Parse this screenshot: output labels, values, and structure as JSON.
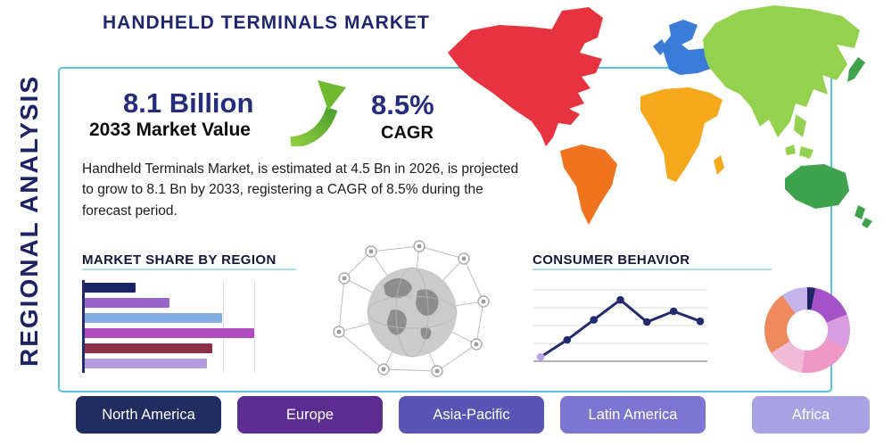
{
  "page": {
    "title": "HANDHELD TERMINALS MARKET",
    "vertical_label": "REGIONAL ANALYSIS"
  },
  "highlights": {
    "market_value": "8.1 Billion",
    "market_value_caption": "2033 Market Value",
    "cagr_value": "8.5%",
    "cagr_caption": "CAGR",
    "description": "Handheld Terminals Market, is estimated at 4.5 Bn in 2026, is projected to grow to 8.1 Bn by 2033, registering a CAGR of 8.5% during the forecast period."
  },
  "theme": {
    "navy": "#232a6e",
    "card_border": "#57c3da",
    "heading_rule": "#a8dff0",
    "arrow_green": "#6fb92f"
  },
  "map": {
    "region_colors": {
      "north-america": "#e73240",
      "greenland": "#e73240",
      "south-america": "#f0741f",
      "europe": "#3b7cd8",
      "uk": "#3b7cd8",
      "africa": "#f5a81c",
      "madagascar": "#f5a81c",
      "asia": "#93d14f",
      "indochina": "#93d14f",
      "indonesia": "#93d14f",
      "japan": "#3fa24c",
      "australia": "#3fa24c",
      "new-zealand": "#3fa24c"
    }
  },
  "chart_data": [
    {
      "type": "bar",
      "title": "MARKET SHARE BY REGION",
      "orientation": "horizontal",
      "unit": "relative length (percent of longest bar)",
      "values": [
        30,
        50,
        81,
        100,
        75,
        72
      ],
      "colors": [
        "#1b2464",
        "#9a63c8",
        "#85aee4",
        "#af4cbe",
        "#8e2f4a",
        "#b49be0"
      ]
    },
    {
      "type": "line",
      "title": "CONSUMER BEHAVIOR",
      "unit": "relative height (0-100)",
      "values": [
        6,
        30,
        58,
        86,
        55,
        70,
        56
      ],
      "color": "#232a6e",
      "start_marker_color": "#b9a6e8",
      "grid": true
    },
    {
      "type": "donut",
      "values": [
        3,
        16,
        13,
        20,
        14,
        24,
        10
      ],
      "colors": [
        "#1e2463",
        "#a352c8",
        "#d79de0",
        "#ef97c5",
        "#f2bcd9",
        "#ee8a5e",
        "#c5b4ea"
      ]
    }
  ],
  "region_buttons": [
    {
      "label": "North America",
      "color": "#212c60"
    },
    {
      "label": "Europe",
      "color": "#5b2d90"
    },
    {
      "label": "Asia-Pacific",
      "color": "#5a54b6"
    },
    {
      "label": "Latin America",
      "color": "#7d75d2"
    },
    {
      "label": "Africa",
      "color": "#a9a2e2"
    }
  ]
}
